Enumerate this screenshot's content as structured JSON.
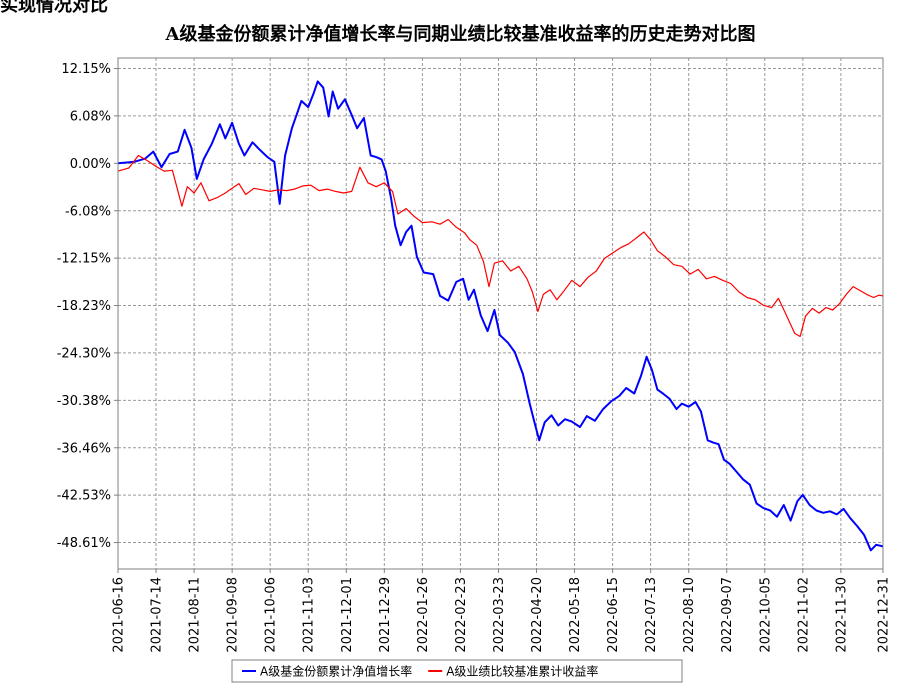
{
  "header": {
    "corner_text": "实现情况对比"
  },
  "chart_data": {
    "type": "line",
    "title": "A级基金份额累计净值增长率与同期业绩比较基准收益率的历史走势对比图",
    "xlabel": "",
    "ylabel": "",
    "ylim": [
      -52.0,
      13.5
    ],
    "y_ticks": [
      "12.15%",
      "6.08%",
      "0.00%",
      "-6.08%",
      "-12.15%",
      "-18.23%",
      "-24.30%",
      "-30.38%",
      "-36.46%",
      "-42.53%",
      "-48.61%"
    ],
    "y_tick_values": [
      12.15,
      6.08,
      0.0,
      -6.08,
      -12.15,
      -18.23,
      -24.3,
      -30.38,
      -36.46,
      -42.53,
      -48.61
    ],
    "x_ticks": [
      "2021-06-16",
      "2021-07-14",
      "2021-08-11",
      "2021-09-08",
      "2021-10-06",
      "2021-11-03",
      "2021-12-01",
      "2021-12-29",
      "2022-01-26",
      "2022-02-23",
      "2022-03-23",
      "2022-04-20",
      "2022-05-18",
      "2022-06-15",
      "2022-07-13",
      "2022-08-10",
      "2022-09-07",
      "2022-10-05",
      "2022-11-02",
      "2022-11-30",
      "2022-12-31"
    ],
    "grid": true,
    "legend_position": "bottom",
    "series": [
      {
        "name": "A级基金份额累计净值增长率",
        "color": "#0000ff",
        "points": [
          [
            "2021-06-16",
            0.0
          ],
          [
            "2021-06-28",
            0.2
          ],
          [
            "2021-07-06",
            0.6
          ],
          [
            "2021-07-12",
            1.5
          ],
          [
            "2021-07-18",
            -0.5
          ],
          [
            "2021-07-24",
            1.2
          ],
          [
            "2021-07-30",
            1.5
          ],
          [
            "2021-08-04",
            4.3
          ],
          [
            "2021-08-09",
            2.0
          ],
          [
            "2021-08-13",
            -2.0
          ],
          [
            "2021-08-18",
            0.5
          ],
          [
            "2021-08-24",
            2.5
          ],
          [
            "2021-08-30",
            5.0
          ],
          [
            "2021-09-03",
            3.2
          ],
          [
            "2021-09-08",
            5.2
          ],
          [
            "2021-09-13",
            2.5
          ],
          [
            "2021-09-17",
            1.0
          ],
          [
            "2021-09-23",
            2.7
          ],
          [
            "2021-09-28",
            1.8
          ],
          [
            "2021-10-04",
            0.8
          ],
          [
            "2021-10-09",
            0.2
          ],
          [
            "2021-10-13",
            -5.2
          ],
          [
            "2021-10-17",
            1.0
          ],
          [
            "2021-10-22",
            4.5
          ],
          [
            "2021-10-26",
            6.5
          ],
          [
            "2021-10-29",
            8.0
          ],
          [
            "2021-11-03",
            7.2
          ],
          [
            "2021-11-07",
            9.0
          ],
          [
            "2021-11-10",
            10.5
          ],
          [
            "2021-11-14",
            9.7
          ],
          [
            "2021-11-18",
            6.0
          ],
          [
            "2021-11-21",
            9.2
          ],
          [
            "2021-11-25",
            7.0
          ],
          [
            "2021-11-30",
            8.2
          ],
          [
            "2021-12-05",
            6.2
          ],
          [
            "2021-12-09",
            4.5
          ],
          [
            "2021-12-14",
            5.8
          ],
          [
            "2021-12-19",
            1.0
          ],
          [
            "2021-12-23",
            0.8
          ],
          [
            "2021-12-27",
            0.5
          ],
          [
            "2021-12-30",
            -1.0
          ],
          [
            "2022-01-03",
            -4.5
          ],
          [
            "2022-01-06",
            -8.0
          ],
          [
            "2022-01-10",
            -10.5
          ],
          [
            "2022-01-14",
            -8.8
          ],
          [
            "2022-01-18",
            -8.0
          ],
          [
            "2022-01-22",
            -12.0
          ],
          [
            "2022-01-27",
            -14.0
          ],
          [
            "2022-02-03",
            -14.2
          ],
          [
            "2022-02-08",
            -17.0
          ],
          [
            "2022-02-14",
            -17.6
          ],
          [
            "2022-02-20",
            -15.2
          ],
          [
            "2022-02-25",
            -14.8
          ],
          [
            "2022-03-01",
            -17.5
          ],
          [
            "2022-03-05",
            -16.2
          ],
          [
            "2022-03-10",
            -19.5
          ],
          [
            "2022-03-15",
            -21.5
          ],
          [
            "2022-03-20",
            -18.8
          ],
          [
            "2022-03-24",
            -22.0
          ],
          [
            "2022-03-30",
            -23.0
          ],
          [
            "2022-04-04",
            -24.2
          ],
          [
            "2022-04-10",
            -27.0
          ],
          [
            "2022-04-15",
            -30.8
          ],
          [
            "2022-04-19",
            -33.5
          ],
          [
            "2022-04-22",
            -35.5
          ],
          [
            "2022-04-26",
            -33.2
          ],
          [
            "2022-05-01",
            -32.3
          ],
          [
            "2022-05-06",
            -33.6
          ],
          [
            "2022-05-11",
            -32.8
          ],
          [
            "2022-05-16",
            -33.1
          ],
          [
            "2022-05-22",
            -33.8
          ],
          [
            "2022-05-27",
            -32.4
          ],
          [
            "2022-06-02",
            -33.0
          ],
          [
            "2022-06-08",
            -31.5
          ],
          [
            "2022-06-14",
            -30.5
          ],
          [
            "2022-06-20",
            -29.8
          ],
          [
            "2022-06-25",
            -28.8
          ],
          [
            "2022-07-01",
            -29.5
          ],
          [
            "2022-07-06",
            -27.2
          ],
          [
            "2022-07-10",
            -24.8
          ],
          [
            "2022-07-14",
            -26.5
          ],
          [
            "2022-07-18",
            -29.0
          ],
          [
            "2022-07-22",
            -29.5
          ],
          [
            "2022-07-27",
            -30.2
          ],
          [
            "2022-08-01",
            -31.5
          ],
          [
            "2022-08-05",
            -30.8
          ],
          [
            "2022-08-10",
            -31.2
          ],
          [
            "2022-08-15",
            -30.6
          ],
          [
            "2022-08-19",
            -31.8
          ],
          [
            "2022-08-24",
            -35.5
          ],
          [
            "2022-08-28",
            -35.8
          ],
          [
            "2022-09-01",
            -36.0
          ],
          [
            "2022-09-05",
            -38.0
          ],
          [
            "2022-09-09",
            -38.5
          ],
          [
            "2022-09-14",
            -39.5
          ],
          [
            "2022-09-19",
            -40.5
          ],
          [
            "2022-09-24",
            -41.2
          ],
          [
            "2022-09-29",
            -43.6
          ],
          [
            "2022-10-04",
            -44.2
          ],
          [
            "2022-10-09",
            -44.5
          ],
          [
            "2022-10-14",
            -45.3
          ],
          [
            "2022-10-19",
            -43.8
          ],
          [
            "2022-10-24",
            -45.8
          ],
          [
            "2022-10-29",
            -43.3
          ],
          [
            "2022-11-02",
            -42.5
          ],
          [
            "2022-11-07",
            -43.8
          ],
          [
            "2022-11-12",
            -44.5
          ],
          [
            "2022-11-17",
            -44.8
          ],
          [
            "2022-11-22",
            -44.6
          ],
          [
            "2022-11-27",
            -45.0
          ],
          [
            "2022-12-02",
            -44.3
          ],
          [
            "2022-12-07",
            -45.5
          ],
          [
            "2022-12-12",
            -46.5
          ],
          [
            "2022-12-17",
            -47.6
          ],
          [
            "2022-12-22",
            -49.6
          ],
          [
            "2022-12-26",
            -48.9
          ],
          [
            "2022-12-31",
            -49.1
          ]
        ]
      },
      {
        "name": "A级业绩比较基准累计收益率",
        "color": "#ff0000",
        "points": [
          [
            "2021-06-16",
            -1.0
          ],
          [
            "2021-06-24",
            -0.6
          ],
          [
            "2021-07-01",
            1.0
          ],
          [
            "2021-07-08",
            0.3
          ],
          [
            "2021-07-14",
            -0.4
          ],
          [
            "2021-07-20",
            -1.0
          ],
          [
            "2021-07-26",
            -0.9
          ],
          [
            "2021-08-02",
            -5.5
          ],
          [
            "2021-08-06",
            -3.0
          ],
          [
            "2021-08-11",
            -3.8
          ],
          [
            "2021-08-16",
            -2.5
          ],
          [
            "2021-08-22",
            -4.8
          ],
          [
            "2021-08-28",
            -4.4
          ],
          [
            "2021-09-03",
            -3.8
          ],
          [
            "2021-09-08",
            -3.2
          ],
          [
            "2021-09-13",
            -2.6
          ],
          [
            "2021-09-18",
            -4.0
          ],
          [
            "2021-09-24",
            -3.2
          ],
          [
            "2021-09-30",
            -3.4
          ],
          [
            "2021-10-06",
            -3.6
          ],
          [
            "2021-10-12",
            -3.4
          ],
          [
            "2021-10-18",
            -3.5
          ],
          [
            "2021-10-24",
            -3.3
          ],
          [
            "2021-10-30",
            -2.9
          ],
          [
            "2021-11-05",
            -2.8
          ],
          [
            "2021-11-11",
            -3.5
          ],
          [
            "2021-11-17",
            -3.3
          ],
          [
            "2021-11-23",
            -3.6
          ],
          [
            "2021-11-29",
            -3.8
          ],
          [
            "2021-12-05",
            -3.6
          ],
          [
            "2021-12-11",
            -0.5
          ],
          [
            "2021-12-17",
            -2.5
          ],
          [
            "2021-12-23",
            -3.0
          ],
          [
            "2021-12-29",
            -2.5
          ],
          [
            "2022-01-04",
            -3.6
          ],
          [
            "2022-01-08",
            -6.5
          ],
          [
            "2022-01-14",
            -5.8
          ],
          [
            "2022-01-20",
            -6.8
          ],
          [
            "2022-01-26",
            -7.6
          ],
          [
            "2022-02-02",
            -7.5
          ],
          [
            "2022-02-08",
            -7.8
          ],
          [
            "2022-02-14",
            -7.2
          ],
          [
            "2022-02-20",
            -8.2
          ],
          [
            "2022-02-26",
            -8.9
          ],
          [
            "2022-03-02",
            -9.8
          ],
          [
            "2022-03-07",
            -10.5
          ],
          [
            "2022-03-12",
            -12.6
          ],
          [
            "2022-03-16",
            -15.8
          ],
          [
            "2022-03-20",
            -12.8
          ],
          [
            "2022-03-26",
            -12.5
          ],
          [
            "2022-04-01",
            -13.8
          ],
          [
            "2022-04-07",
            -13.2
          ],
          [
            "2022-04-13",
            -14.8
          ],
          [
            "2022-04-17",
            -16.5
          ],
          [
            "2022-04-21",
            -19.0
          ],
          [
            "2022-04-25",
            -16.8
          ],
          [
            "2022-04-30",
            -16.2
          ],
          [
            "2022-05-05",
            -17.5
          ],
          [
            "2022-05-10",
            -16.4
          ],
          [
            "2022-05-16",
            -15.0
          ],
          [
            "2022-05-22",
            -15.8
          ],
          [
            "2022-05-28",
            -14.6
          ],
          [
            "2022-06-03",
            -13.8
          ],
          [
            "2022-06-09",
            -12.2
          ],
          [
            "2022-06-15",
            -11.5
          ],
          [
            "2022-06-21",
            -10.8
          ],
          [
            "2022-06-27",
            -10.3
          ],
          [
            "2022-07-03",
            -9.5
          ],
          [
            "2022-07-08",
            -8.8
          ],
          [
            "2022-07-13",
            -9.8
          ],
          [
            "2022-07-18",
            -11.2
          ],
          [
            "2022-07-24",
            -12.0
          ],
          [
            "2022-07-30",
            -13.0
          ],
          [
            "2022-08-05",
            -13.2
          ],
          [
            "2022-08-11",
            -14.2
          ],
          [
            "2022-08-17",
            -13.6
          ],
          [
            "2022-08-23",
            -14.8
          ],
          [
            "2022-08-29",
            -14.5
          ],
          [
            "2022-09-04",
            -15.0
          ],
          [
            "2022-09-10",
            -15.4
          ],
          [
            "2022-09-16",
            -16.5
          ],
          [
            "2022-09-22",
            -17.2
          ],
          [
            "2022-09-28",
            -17.5
          ],
          [
            "2022-10-04",
            -18.2
          ],
          [
            "2022-10-10",
            -18.5
          ],
          [
            "2022-10-15",
            -17.3
          ],
          [
            "2022-10-21",
            -19.5
          ],
          [
            "2022-10-27",
            -21.8
          ],
          [
            "2022-10-31",
            -22.2
          ],
          [
            "2022-11-04",
            -19.6
          ],
          [
            "2022-11-09",
            -18.6
          ],
          [
            "2022-11-14",
            -19.2
          ],
          [
            "2022-11-19",
            -18.5
          ],
          [
            "2022-11-24",
            -18.8
          ],
          [
            "2022-11-29",
            -18.0
          ],
          [
            "2022-12-04",
            -16.8
          ],
          [
            "2022-12-09",
            -15.8
          ],
          [
            "2022-12-14",
            -16.3
          ],
          [
            "2022-12-19",
            -16.8
          ],
          [
            "2022-12-24",
            -17.2
          ],
          [
            "2022-12-28",
            -16.9
          ],
          [
            "2022-12-31",
            -17.0
          ]
        ]
      }
    ]
  }
}
